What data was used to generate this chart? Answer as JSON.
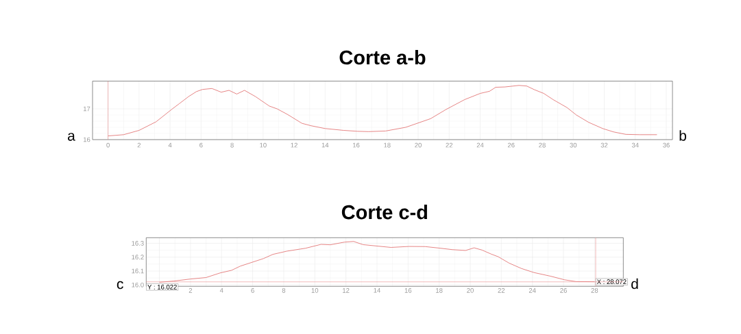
{
  "chart_data": [
    {
      "type": "line",
      "title": "Corte a-b",
      "color": "#e06666",
      "x": [
        0,
        1,
        2,
        3.1,
        3.6,
        4.1,
        4.6,
        5.2,
        5.7,
        6.1,
        6.7,
        7.3,
        7.8,
        8.3,
        8.8,
        9.5,
        10.4,
        10.9,
        11.6,
        12.5,
        13.1,
        14,
        15.2,
        16.1,
        16.8,
        17.9,
        19.2,
        20,
        20.8,
        21.8,
        23,
        24,
        24.6,
        25,
        25.6,
        26.5,
        27,
        27.5,
        28.1,
        28.7,
        29.6,
        30.2,
        31,
        31.9,
        32.6,
        33.4,
        34.3,
        35.4
      ],
      "values": [
        16.12,
        16.16,
        16.3,
        16.58,
        16.78,
        16.98,
        17.17,
        17.4,
        17.56,
        17.63,
        17.66,
        17.54,
        17.6,
        17.48,
        17.6,
        17.4,
        17.09,
        17.0,
        16.81,
        16.53,
        16.45,
        16.36,
        16.3,
        16.27,
        16.26,
        16.28,
        16.4,
        16.54,
        16.68,
        16.98,
        17.3,
        17.5,
        17.57,
        17.7,
        17.71,
        17.76,
        17.74,
        17.62,
        17.5,
        17.3,
        17.04,
        16.8,
        16.56,
        16.36,
        16.25,
        16.17,
        16.16,
        16.16
      ],
      "xlim": [
        -1,
        36.4
      ],
      "ylim": [
        16,
        17.9
      ],
      "xticks": [
        0,
        2,
        4,
        6,
        8,
        10,
        12,
        14,
        16,
        18,
        20,
        22,
        24,
        26,
        28,
        30,
        32,
        34,
        36
      ],
      "yticks": [
        16,
        17
      ],
      "grid": true,
      "ref_lines": [
        {
          "axis": "x",
          "value": 0,
          "color": "#e88a8a"
        }
      ],
      "annotations": [
        "a",
        "b"
      ]
    },
    {
      "type": "line",
      "title": "Corte c-d",
      "color": "#e06666",
      "x": [
        0,
        0.93,
        1.97,
        3.0,
        3.9,
        4.64,
        5.2,
        6.7,
        7.3,
        8.2,
        9.4,
        10.4,
        11.0,
        11.9,
        12.5,
        13.1,
        14.0,
        14.9,
        16.06,
        17.1,
        18.1,
        18.85,
        19.7,
        20.25,
        20.76,
        21.35,
        21.8,
        22.5,
        23.3,
        24.1,
        25.2,
        26.06,
        26.8,
        28.0
      ],
      "values": [
        16.019,
        16.028,
        16.042,
        16.053,
        16.086,
        16.105,
        16.135,
        16.19,
        16.22,
        16.243,
        16.264,
        16.292,
        16.289,
        16.308,
        16.313,
        16.29,
        16.28,
        16.27,
        16.277,
        16.276,
        16.264,
        16.254,
        16.248,
        16.267,
        16.251,
        16.222,
        16.203,
        16.157,
        16.118,
        16.089,
        16.062,
        16.037,
        16.024,
        16.023
      ],
      "xlim": [
        -0.85,
        29.85
      ],
      "ylim": [
        15.99,
        16.34
      ],
      "xticks": [
        {
          "value": 0,
          "label": null
        },
        2,
        4,
        6,
        8,
        10,
        12,
        14,
        16,
        18,
        20,
        22,
        24,
        26,
        28
      ],
      "yticks": [
        {
          "value": 16.0,
          "label": "16.0"
        },
        16.1,
        16.2,
        16.3
      ],
      "grid": true,
      "ref_lines": [
        {
          "axis": "x",
          "value": 28.072,
          "label": "X : 28.072",
          "color": "#e88a8a"
        },
        {
          "axis": "y",
          "value": 16.022,
          "label": "Y : 16.022",
          "color": "#e88a8a"
        }
      ],
      "annotations": [
        "c",
        "d"
      ]
    }
  ]
}
